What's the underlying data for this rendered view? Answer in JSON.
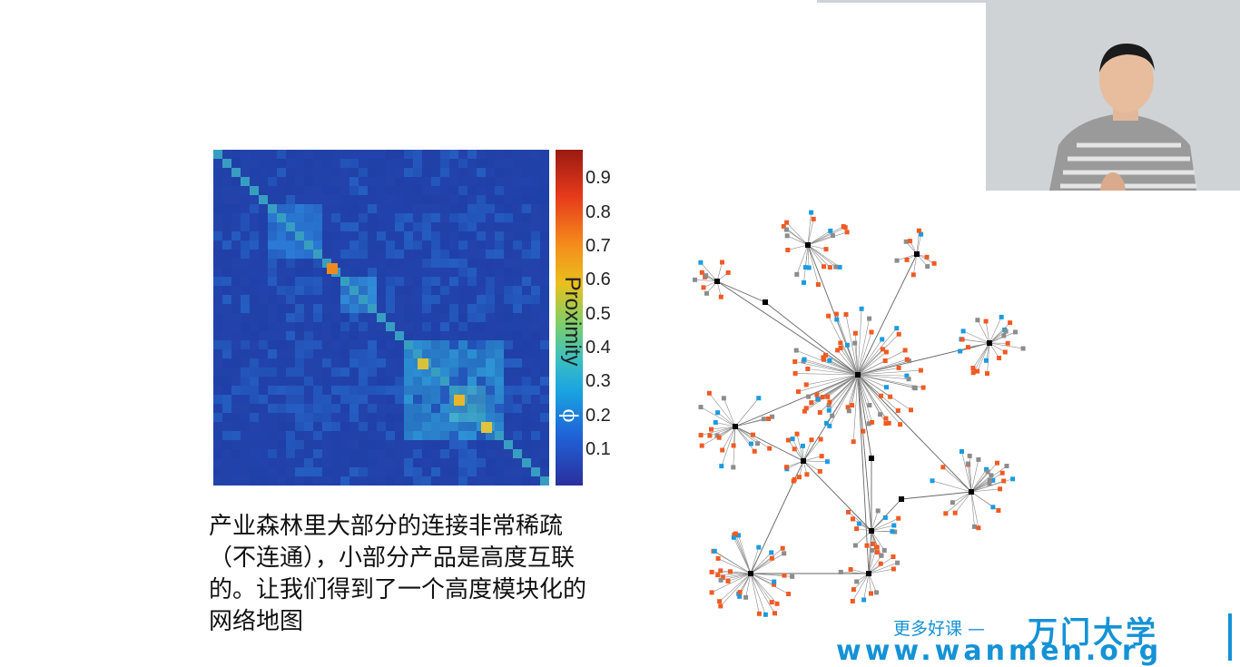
{
  "heatmap": {
    "colorbar_ticks": [
      "0.9",
      "0.8",
      "0.7",
      "0.6",
      "0.5",
      "0.4",
      "0.3",
      "0.2",
      "0.1"
    ],
    "colorbar_label": "Proximity",
    "colorbar_symbol": "ϕ"
  },
  "caption": {
    "lines": [
      "产业森林里大部分的连接非常稀疏",
      "（不连通），小部分产品是高度互联",
      "的。让我们得到了一个高度模块化的",
      "网络地图"
    ]
  },
  "watermark": {
    "more": "更多好课 —",
    "brand": "万门大学",
    "url": "www.wanmen.org"
  },
  "colors": {
    "orange_node": "#f05a23",
    "gray_node": "#8c8c8c",
    "blue_node": "#1b9be0",
    "hub_node": "#000000",
    "brand_blue": "#1592d6"
  }
}
